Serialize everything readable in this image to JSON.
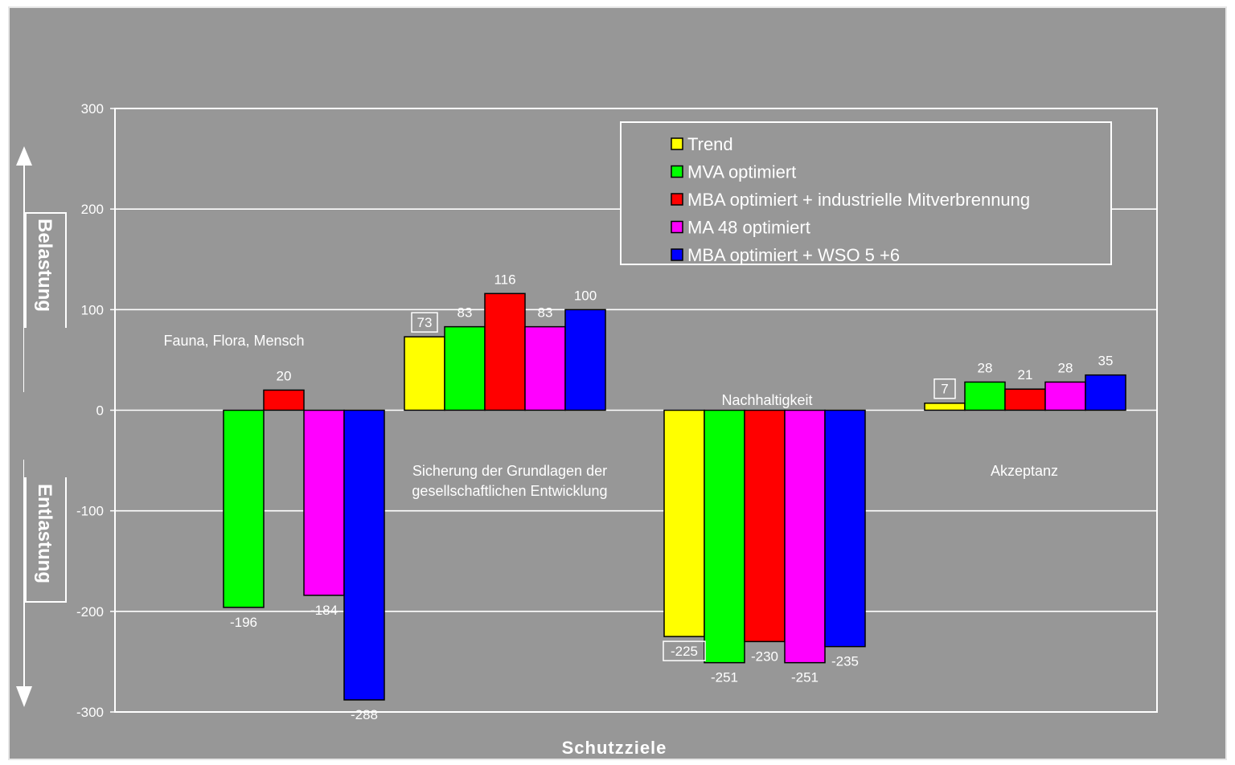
{
  "chart_data": {
    "type": "bar",
    "categories": [
      "Fauna, Flora, Mensch",
      "Sicherung der Grundlagen der gesellschaftlichen Entwicklung",
      "Nachhaltigkeit",
      "Akzeptanz"
    ],
    "category_lines": [
      [
        "Fauna, Flora, Mensch"
      ],
      [
        "Sicherung der Grundlagen der",
        "gesellschaftlichen Entwicklung"
      ],
      [
        "Nachhaltigkeit"
      ],
      [
        "Akzeptanz"
      ]
    ],
    "series": [
      {
        "name": "Trend",
        "color": "#ffff00",
        "values": [
          0,
          73,
          -225,
          7
        ]
      },
      {
        "name": "MVA optimiert",
        "color": "#00ff00",
        "values": [
          -196,
          83,
          -251,
          28
        ]
      },
      {
        "name": "MBA optimiert + industrielle Mitverbrennung",
        "color": "#ff0000",
        "values": [
          20,
          116,
          -230,
          21
        ]
      },
      {
        "name": "MA 48 optimiert",
        "color": "#ff00ff",
        "values": [
          -184,
          83,
          -251,
          28
        ]
      },
      {
        "name": "MBA optimiert + WSO 5 +6",
        "color": "#0000ff",
        "values": [
          -288,
          100,
          -235,
          35
        ]
      }
    ],
    "data_labels": [
      [
        "",
        "73",
        "-225",
        "7"
      ],
      [
        "-196",
        "83",
        "-251",
        "28"
      ],
      [
        "20",
        "116",
        "-230",
        "21"
      ],
      [
        "-184",
        "83",
        "-251",
        "28"
      ],
      [
        "-288",
        "100",
        "-235",
        "35"
      ]
    ],
    "boxed_labels": [
      [
        0,
        1
      ],
      [
        0,
        2
      ],
      [
        0,
        3
      ]
    ],
    "y_ticks": [
      "300",
      "200",
      "100",
      "0",
      "-100",
      "-200",
      "-300"
    ],
    "ylim": [
      -300,
      300
    ],
    "xlabel": "Schutzziele",
    "ylabel_top": "Belastung",
    "ylabel_bottom": "Entlastung",
    "grid": true,
    "legend_position": "top-right"
  }
}
